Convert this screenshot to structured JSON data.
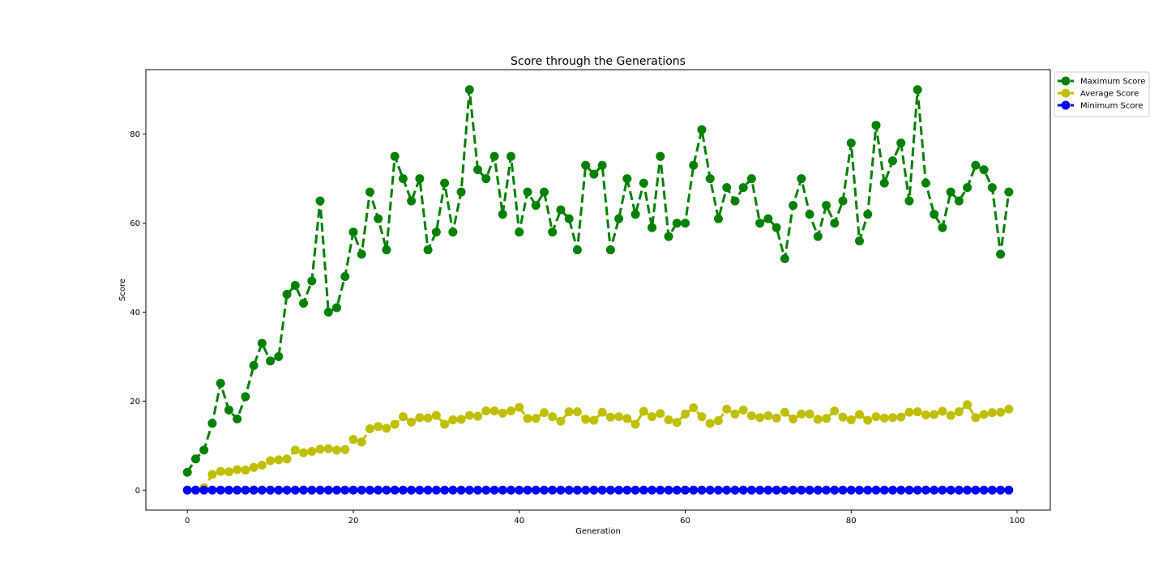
{
  "chart_data": {
    "type": "line",
    "title": "Score through the Generations",
    "xlabel": "Generation",
    "ylabel": "Score",
    "xlim": [
      -5,
      104
    ],
    "ylim": [
      -4.5,
      94.5
    ],
    "xticks": [
      0,
      20,
      40,
      60,
      80,
      100
    ],
    "yticks": [
      0,
      20,
      40,
      60,
      80
    ],
    "grid": false,
    "legend_position": "outside-top-right",
    "x": [
      0,
      1,
      2,
      3,
      4,
      5,
      6,
      7,
      8,
      9,
      10,
      11,
      12,
      13,
      14,
      15,
      16,
      17,
      18,
      19,
      20,
      21,
      22,
      23,
      24,
      25,
      26,
      27,
      28,
      29,
      30,
      31,
      32,
      33,
      34,
      35,
      36,
      37,
      38,
      39,
      40,
      41,
      42,
      43,
      44,
      45,
      46,
      47,
      48,
      49,
      50,
      51,
      52,
      53,
      54,
      55,
      56,
      57,
      58,
      59,
      60,
      61,
      62,
      63,
      64,
      65,
      66,
      67,
      68,
      69,
      70,
      71,
      72,
      73,
      74,
      75,
      76,
      77,
      78,
      79,
      80,
      81,
      82,
      83,
      84,
      85,
      86,
      87,
      88,
      89,
      90,
      91,
      92,
      93,
      94,
      95,
      96,
      97,
      98,
      99
    ],
    "series": [
      {
        "name": "Maximum Score",
        "color": "#008000",
        "values": [
          4,
          7,
          9,
          15,
          24,
          18,
          16,
          21,
          28,
          33,
          29,
          30,
          44,
          46,
          42,
          47,
          65,
          40,
          41,
          48,
          58,
          53,
          67,
          61,
          54,
          75,
          70,
          65,
          70,
          54,
          58,
          69,
          58,
          67,
          90,
          72,
          70,
          75,
          62,
          75,
          58,
          67,
          64,
          67,
          58,
          63,
          61,
          54,
          73,
          71,
          73,
          54,
          61,
          70,
          62,
          69,
          59,
          75,
          57,
          60,
          60,
          73,
          81,
          70,
          61,
          68,
          65,
          68,
          70,
          60,
          61,
          59,
          52,
          64,
          70,
          62,
          57,
          64,
          60,
          65,
          78,
          56,
          62,
          82,
          69,
          74,
          78,
          65,
          90,
          69,
          62,
          59,
          67,
          65,
          68,
          73,
          72,
          68,
          53,
          67
        ]
      },
      {
        "name": "Average Score",
        "color": "#bfbf00",
        "values": [
          0,
          0,
          0.5,
          3.5,
          4.2,
          4.1,
          4.6,
          4.5,
          5.1,
          5.6,
          6.6,
          6.8,
          7.0,
          9.0,
          8.4,
          8.7,
          9.2,
          9.3,
          9.0,
          9.1,
          11.4,
          10.8,
          13.8,
          14.3,
          13.9,
          14.8,
          16.5,
          15.3,
          16.3,
          16.2,
          16.8,
          14.8,
          15.8,
          15.9,
          16.8,
          16.6,
          17.8,
          17.8,
          17.3,
          17.8,
          18.6,
          16.1,
          16.1,
          17.4,
          16.5,
          15.5,
          17.6,
          17.6,
          15.9,
          15.7,
          17.5,
          16.4,
          16.5,
          16.1,
          14.8,
          17.7,
          16.5,
          17.2,
          15.8,
          15.2,
          17.1,
          18.5,
          16.5,
          15.0,
          15.6,
          18.2,
          17.1,
          18.0,
          16.7,
          16.3,
          16.7,
          16.2,
          17.5,
          16.0,
          17.1,
          17.1,
          15.9,
          16.1,
          17.8,
          16.4,
          15.8,
          17.0,
          15.7,
          16.5,
          16.2,
          16.3,
          16.4,
          17.5,
          17.6,
          16.9,
          17.0,
          17.7,
          16.8,
          17.6,
          19.2,
          16.3,
          17.0,
          17.4,
          17.5,
          18.2
        ]
      },
      {
        "name": "Minimum Score",
        "color": "#0000ff",
        "values": [
          0,
          0,
          0,
          0,
          0,
          0,
          0,
          0,
          0,
          0,
          0,
          0,
          0,
          0,
          0,
          0,
          0,
          0,
          0,
          0,
          0,
          0,
          0,
          0,
          0,
          0,
          0,
          0,
          0,
          0,
          0,
          0,
          0,
          0,
          0,
          0,
          0,
          0,
          0,
          0,
          0,
          0,
          0,
          0,
          0,
          0,
          0,
          0,
          0,
          0,
          0,
          0,
          0,
          0,
          0,
          0,
          0,
          0,
          0,
          0,
          0,
          0,
          0,
          0,
          0,
          0,
          0,
          0,
          0,
          0,
          0,
          0,
          0,
          0,
          0,
          0,
          0,
          0,
          0,
          0,
          0,
          0,
          0,
          0,
          0,
          0,
          0,
          0,
          0,
          0,
          0,
          0,
          0,
          0,
          0,
          0,
          0,
          0,
          0,
          0
        ]
      }
    ]
  }
}
